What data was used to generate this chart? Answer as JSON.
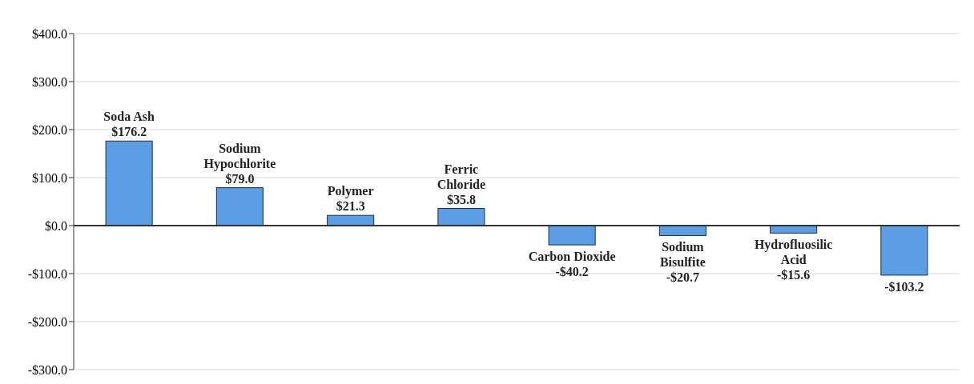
{
  "chart_data": {
    "type": "bar",
    "categories": [
      "Soda Ash",
      "Sodium\nHypochlorite",
      "Polymer",
      "Ferric\nChloride",
      "Carbon Dioxide",
      "Sodium\nBisulfite",
      "Hydrofluosilic\nAcid",
      null
    ],
    "values": [
      176.2,
      79.0,
      21.3,
      35.8,
      -40.2,
      -20.7,
      -15.6,
      -103.2
    ],
    "value_labels": [
      "$176.2",
      "$79.0",
      "$21.3",
      "$35.8",
      "-$40.2",
      "-$20.7",
      "-$15.6",
      "-$103.2"
    ],
    "color": "#5b9ee6",
    "ylim": [
      -300,
      400
    ],
    "yticks": [
      {
        "value": -300,
        "label": "-$300.0"
      },
      {
        "value": -200,
        "label": "-$200.0"
      },
      {
        "value": -100,
        "label": "-$100.0"
      },
      {
        "value": 0,
        "label": "$0.0"
      },
      {
        "value": 100,
        "label": "$100.0"
      },
      {
        "value": 200,
        "label": "$200.0"
      },
      {
        "value": 300,
        "label": "$300.0"
      },
      {
        "value": 400,
        "label": "$400.0"
      }
    ],
    "grid": "y"
  }
}
